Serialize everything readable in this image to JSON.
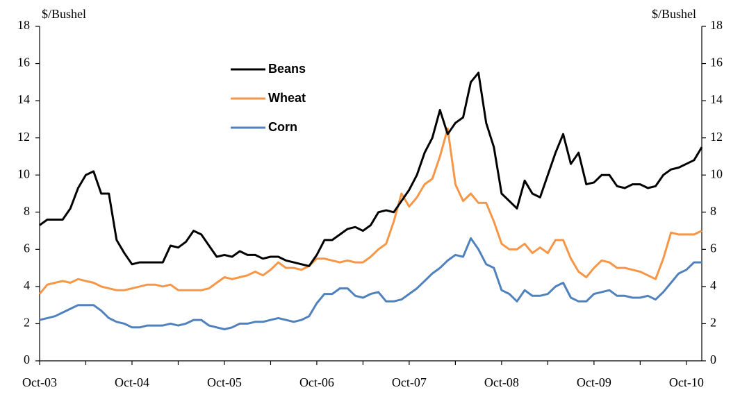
{
  "chart_data": {
    "type": "line",
    "ylabel": "$/Bushel",
    "y2label": "$/Bushel",
    "x": [
      "2003-10",
      "2003-11",
      "2003-12",
      "2004-01",
      "2004-02",
      "2004-03",
      "2004-04",
      "2004-05",
      "2004-06",
      "2004-07",
      "2004-08",
      "2004-09",
      "2004-10",
      "2004-11",
      "2004-12",
      "2005-01",
      "2005-02",
      "2005-03",
      "2005-04",
      "2005-05",
      "2005-06",
      "2005-07",
      "2005-08",
      "2005-09",
      "2005-10",
      "2005-11",
      "2005-12",
      "2006-01",
      "2006-02",
      "2006-03",
      "2006-04",
      "2006-05",
      "2006-06",
      "2006-07",
      "2006-08",
      "2006-09",
      "2006-10",
      "2006-11",
      "2006-12",
      "2007-01",
      "2007-02",
      "2007-03",
      "2007-04",
      "2007-05",
      "2007-06",
      "2007-07",
      "2007-08",
      "2007-09",
      "2007-10",
      "2007-11",
      "2007-12",
      "2008-01",
      "2008-02",
      "2008-03",
      "2008-04",
      "2008-05",
      "2008-06",
      "2008-07",
      "2008-08",
      "2008-09",
      "2008-10",
      "2008-11",
      "2008-12",
      "2009-01",
      "2009-02",
      "2009-03",
      "2009-04",
      "2009-05",
      "2009-06",
      "2009-07",
      "2009-08",
      "2009-09",
      "2009-10",
      "2009-11",
      "2009-12",
      "2010-01",
      "2010-02",
      "2010-03",
      "2010-04",
      "2010-05",
      "2010-06",
      "2010-07",
      "2010-08",
      "2010-09",
      "2010-10",
      "2010-11",
      "2010-12"
    ],
    "series": [
      {
        "name": "Beans",
        "color": "#000000",
        "values": [
          7.3,
          7.6,
          7.6,
          7.6,
          8.2,
          9.3,
          10.0,
          10.2,
          9.0,
          9.0,
          6.5,
          5.8,
          5.2,
          5.3,
          5.3,
          5.3,
          5.3,
          6.2,
          6.1,
          6.4,
          7.0,
          6.8,
          6.2,
          5.6,
          5.7,
          5.6,
          5.9,
          5.7,
          5.7,
          5.5,
          5.6,
          5.6,
          5.4,
          5.3,
          5.2,
          5.1,
          5.7,
          6.5,
          6.5,
          6.8,
          7.1,
          7.2,
          7.0,
          7.3,
          8.0,
          8.1,
          8.0,
          8.6,
          9.2,
          10.0,
          11.2,
          12.0,
          13.5,
          12.2,
          12.8,
          13.1,
          15.0,
          15.5,
          12.8,
          11.5,
          9.0,
          8.6,
          8.2,
          9.7,
          9.0,
          8.8,
          10.0,
          11.2,
          12.2,
          10.6,
          11.2,
          9.5,
          9.6,
          10.0,
          10.0,
          9.4,
          9.3,
          9.5,
          9.5,
          9.3,
          9.4,
          10.0,
          10.3,
          10.4,
          10.6,
          10.8,
          11.5
        ]
      },
      {
        "name": "Wheat",
        "color": "#f79646",
        "values": [
          3.6,
          4.1,
          4.2,
          4.3,
          4.2,
          4.4,
          4.3,
          4.2,
          4.0,
          3.9,
          3.8,
          3.8,
          3.9,
          4.0,
          4.1,
          4.1,
          4.0,
          4.1,
          3.8,
          3.8,
          3.8,
          3.8,
          3.9,
          4.2,
          4.5,
          4.4,
          4.5,
          4.6,
          4.8,
          4.6,
          4.9,
          5.3,
          5.0,
          5.0,
          4.9,
          5.1,
          5.5,
          5.5,
          5.4,
          5.3,
          5.4,
          5.3,
          5.3,
          5.6,
          6.0,
          6.3,
          7.5,
          9.0,
          8.3,
          8.8,
          9.5,
          9.8,
          11.0,
          12.5,
          9.5,
          8.6,
          9.0,
          8.5,
          8.5,
          7.5,
          6.3,
          6.0,
          6.0,
          6.3,
          5.8,
          6.1,
          5.8,
          6.5,
          6.5,
          5.5,
          4.8,
          4.5,
          5.0,
          5.4,
          5.3,
          5.0,
          5.0,
          4.9,
          4.8,
          4.6,
          4.4,
          5.5,
          6.9,
          6.8,
          6.8,
          6.8,
          7.0
        ]
      },
      {
        "name": "Corn",
        "color": "#4f81bd",
        "values": [
          2.2,
          2.3,
          2.4,
          2.6,
          2.8,
          3.0,
          3.0,
          3.0,
          2.7,
          2.3,
          2.1,
          2.0,
          1.8,
          1.8,
          1.9,
          1.9,
          1.9,
          2.0,
          1.9,
          2.0,
          2.2,
          2.2,
          1.9,
          1.8,
          1.7,
          1.8,
          2.0,
          2.0,
          2.1,
          2.1,
          2.2,
          2.3,
          2.2,
          2.1,
          2.2,
          2.4,
          3.1,
          3.6,
          3.6,
          3.9,
          3.9,
          3.5,
          3.4,
          3.6,
          3.7,
          3.2,
          3.2,
          3.3,
          3.6,
          3.9,
          4.3,
          4.7,
          5.0,
          5.4,
          5.7,
          5.6,
          6.6,
          6.0,
          5.2,
          5.0,
          3.8,
          3.6,
          3.2,
          3.8,
          3.5,
          3.5,
          3.6,
          4.0,
          4.2,
          3.4,
          3.2,
          3.2,
          3.6,
          3.7,
          3.8,
          3.5,
          3.5,
          3.4,
          3.4,
          3.5,
          3.3,
          3.7,
          4.2,
          4.7,
          4.9,
          5.3,
          5.3
        ]
      }
    ],
    "xlim": [
      "2003-10",
      "2010-12"
    ],
    "xticks": [
      {
        "value": "2003-10",
        "label": "Oct-03"
      },
      {
        "value": "2004-10",
        "label": "Oct-04"
      },
      {
        "value": "2005-10",
        "label": "Oct-05"
      },
      {
        "value": "2006-10",
        "label": "Oct-06"
      },
      {
        "value": "2007-10",
        "label": "Oct-07"
      },
      {
        "value": "2008-10",
        "label": "Oct-08"
      },
      {
        "value": "2009-10",
        "label": "Oct-09"
      },
      {
        "value": "2010-10",
        "label": "Oct-10"
      }
    ],
    "xminor_ticks": [
      "2004-04",
      "2005-04",
      "2006-04",
      "2007-04",
      "2008-04",
      "2009-04",
      "2010-04"
    ],
    "ylim": [
      0,
      18
    ],
    "yticks": [
      0,
      2,
      4,
      6,
      8,
      10,
      12,
      14,
      16,
      18
    ],
    "y2lim": [
      0,
      18
    ],
    "y2ticks": [
      0,
      2,
      4,
      6,
      8,
      10,
      12,
      14,
      16,
      18
    ],
    "grid": false
  }
}
